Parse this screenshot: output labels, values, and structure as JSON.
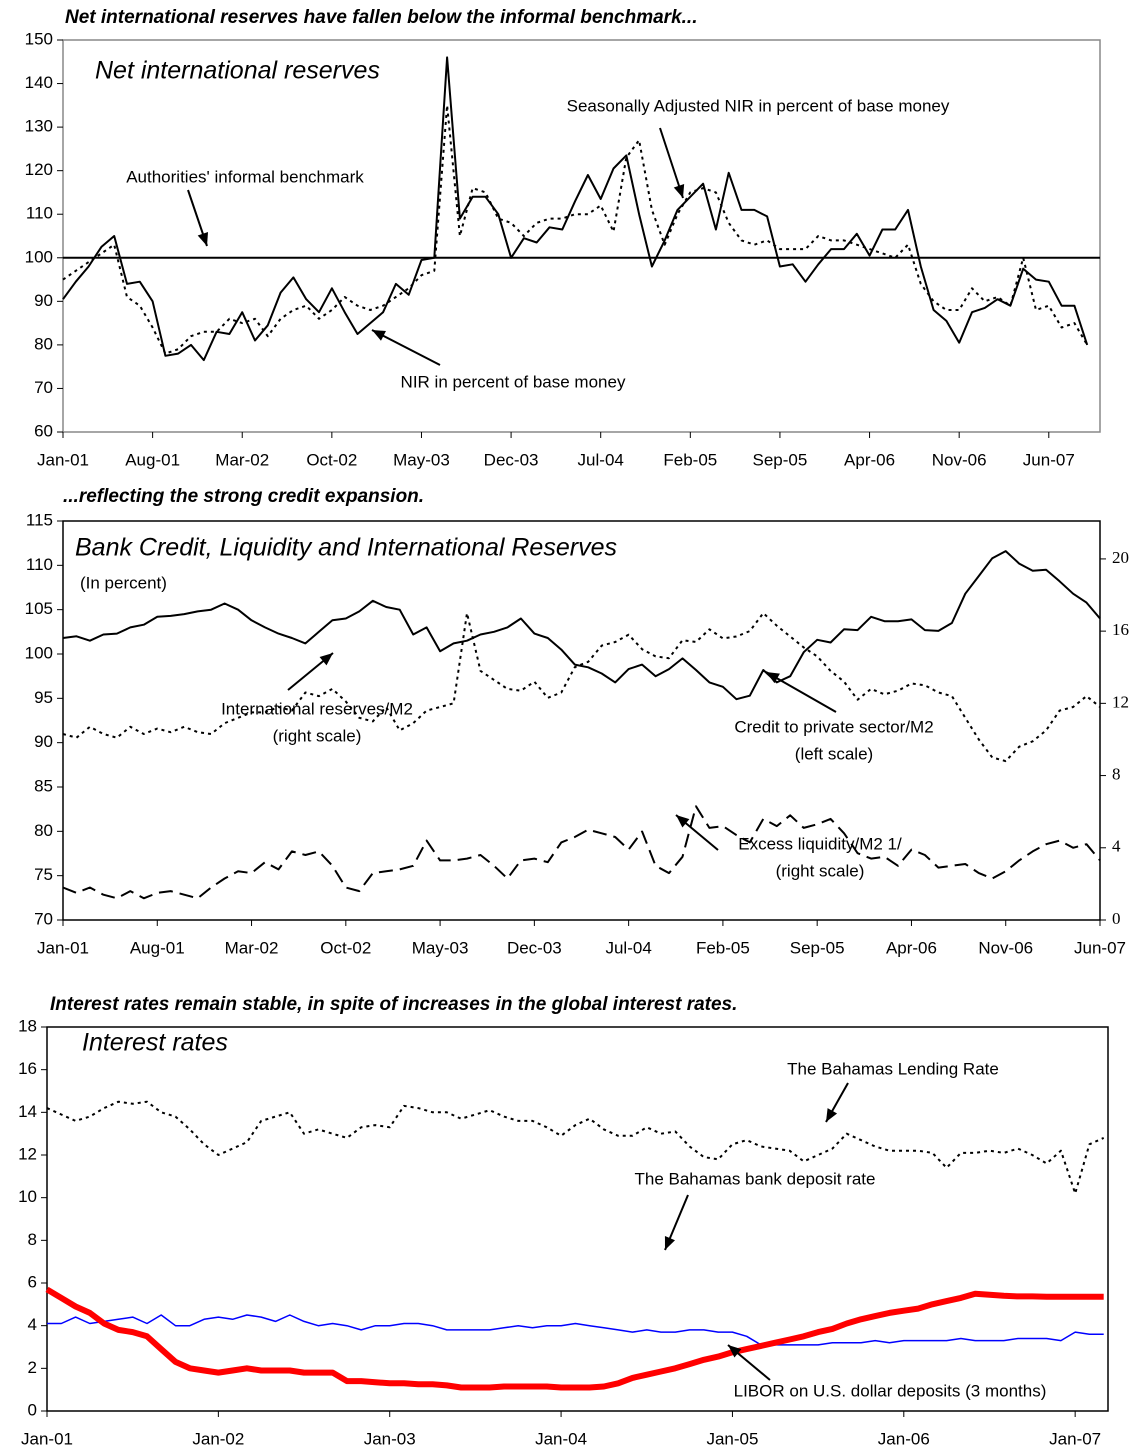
{
  "chart_data": [
    {
      "type": "line",
      "heading": "Net international reserves have fallen below the informal benchmark...",
      "title": "Net international reserves",
      "categories": [
        "Jan-01",
        null,
        null,
        null,
        null,
        null,
        null,
        "Aug-01",
        null,
        null,
        null,
        null,
        null,
        null,
        "Mar-02",
        null,
        null,
        null,
        null,
        null,
        null,
        "Oct-02",
        null,
        null,
        null,
        null,
        null,
        null,
        "May-03",
        null,
        null,
        null,
        null,
        null,
        null,
        "Dec-03",
        null,
        null,
        null,
        null,
        null,
        null,
        "Jul-04",
        null,
        null,
        null,
        null,
        null,
        null,
        "Feb-05",
        null,
        null,
        null,
        null,
        null,
        null,
        "Sep-05",
        null,
        null,
        null,
        null,
        null,
        null,
        "Apr-06",
        null,
        null,
        null,
        null,
        null,
        null,
        "Nov-06",
        null,
        null,
        null,
        null,
        null,
        null,
        "Jun-07",
        null,
        null,
        null
      ],
      "series": [
        {
          "name": "NIR in  percent of base money",
          "color": "#000000",
          "style": "solid",
          "line_width": 2,
          "values": [
            90.5,
            94.5,
            98,
            102.5,
            105,
            94,
            94.5,
            90,
            77.5,
            78,
            80,
            76.5,
            83,
            82.5,
            87.5,
            81,
            84.5,
            92,
            95.5,
            90.5,
            87.5,
            93,
            87.5,
            82.5,
            85,
            87.5,
            94,
            91.5,
            99.5,
            100,
            146,
            109,
            114,
            114,
            110,
            100,
            104.5,
            103.5,
            107,
            106.5,
            113,
            119,
            113.5,
            120.5,
            123.5,
            110,
            98,
            104,
            111,
            114,
            117,
            106.5,
            119.5,
            111,
            111,
            109.5,
            98,
            98.5,
            94.5,
            98.5,
            102,
            102,
            105.5,
            100.5,
            106.5,
            106.5,
            111,
            98,
            88,
            85.5,
            80.5,
            87.5,
            88.5,
            90.5,
            89,
            97.5,
            95,
            94.5,
            89,
            89,
            80
          ]
        },
        {
          "name": "Seasonally Adjusted NIR in  percent of base money",
          "color": "#000000",
          "style": "dotted",
          "line_width": 2,
          "values": [
            95,
            97,
            99,
            101,
            103,
            91,
            89,
            84,
            78,
            79,
            82,
            83,
            83,
            86,
            85,
            86,
            82,
            86,
            88,
            89,
            86,
            88,
            91,
            89,
            88,
            89,
            91,
            93,
            96,
            97,
            135,
            105,
            116,
            115,
            109,
            108,
            105,
            108,
            109,
            109,
            110,
            110,
            112,
            106,
            123,
            127,
            111,
            103,
            110,
            115,
            116,
            115,
            108,
            104,
            103,
            104,
            102,
            102,
            102,
            105,
            104,
            104,
            103,
            102,
            101,
            100,
            103,
            94,
            90,
            88,
            88,
            93,
            90,
            91,
            89,
            100,
            88,
            89,
            84,
            85,
            80
          ]
        }
      ],
      "reference_line": {
        "label": "Authorities' informal benchmark",
        "value": 100
      },
      "ylim": [
        60,
        150
      ],
      "yticks": [
        60,
        70,
        80,
        90,
        100,
        110,
        120,
        130,
        140,
        150
      ],
      "grid": false
    },
    {
      "type": "line",
      "heading": "...reflecting the strong credit expansion.",
      "title": "Bank Credit, Liquidity and International Reserves",
      "subtitle": "(In percent)",
      "categories": [
        "Jan-01",
        null,
        null,
        null,
        null,
        null,
        null,
        "Aug-01",
        null,
        null,
        null,
        null,
        null,
        null,
        "Mar-02",
        null,
        null,
        null,
        null,
        null,
        null,
        "Oct-02",
        null,
        null,
        null,
        null,
        null,
        null,
        "May-03",
        null,
        null,
        null,
        null,
        null,
        null,
        "Dec-03",
        null,
        null,
        null,
        null,
        null,
        null,
        "Jul-04",
        null,
        null,
        null,
        null,
        null,
        null,
        "Feb-05",
        null,
        null,
        null,
        null,
        null,
        null,
        "Sep-05",
        null,
        null,
        null,
        null,
        null,
        null,
        "Apr-06",
        null,
        null,
        null,
        null,
        null,
        null,
        "Nov-06",
        null,
        null,
        null,
        null,
        null,
        null,
        "Jun-07"
      ],
      "series": [
        {
          "name": "Credit to private sector/M2",
          "scale_note": "(left scale)",
          "color": "#000000",
          "style": "solid",
          "line_width": 2,
          "axis": "y",
          "values": [
            101.8,
            102,
            101.5,
            102.2,
            102.3,
            103,
            103.3,
            104.2,
            104.3,
            104.5,
            104.8,
            105,
            105.7,
            105,
            103.8,
            103,
            102.3,
            101.8,
            101.2,
            102.5,
            103.8,
            104,
            104.8,
            106,
            105.3,
            105,
            102.2,
            103,
            100.3,
            101.2,
            101.5,
            102.2,
            102.5,
            103,
            104,
            102.3,
            101.8,
            100.5,
            98.8,
            98.5,
            97.8,
            96.8,
            98.3,
            98.8,
            97.5,
            98.3,
            99.5,
            98.2,
            96.8,
            96.3,
            94.9,
            95.3,
            98.2,
            96.8,
            97.5,
            100.2,
            101.6,
            101.3,
            102.8,
            102.7,
            104.2,
            103.7,
            103.7,
            103.9,
            102.7,
            102.6,
            103.5,
            106.8,
            108.8,
            110.8,
            111.6,
            110.2,
            109.4,
            109.5,
            108.2,
            106.8,
            105.8,
            104
          ]
        },
        {
          "name": "International reserves/M2",
          "scale_note": "(right scale)",
          "color": "#000000",
          "style": "dotted",
          "line_width": 2,
          "axis": "y2",
          "values": [
            10.3,
            10.1,
            10.7,
            10.3,
            10.1,
            10.7,
            10.3,
            10.6,
            10.4,
            10.7,
            10.4,
            10.3,
            10.9,
            11.2,
            11.5,
            11.5,
            11.8,
            11.6,
            12.6,
            12.4,
            12.8,
            12.1,
            11.2,
            11,
            11.8,
            10.5,
            10.9,
            11.6,
            11.8,
            12,
            17,
            13.8,
            13.3,
            12.8,
            12.7,
            13.2,
            12.3,
            12.6,
            14,
            14.3,
            15.2,
            15.4,
            15.8,
            15,
            14.6,
            14.5,
            15.5,
            15.4,
            16.1,
            15.6,
            15.7,
            16,
            17,
            16.3,
            15.7,
            15.1,
            14.6,
            13.8,
            13.2,
            12.2,
            12.8,
            12.5,
            12.7,
            13.1,
            13,
            12.6,
            12.4,
            11.2,
            10,
            9,
            8.8,
            9.6,
            9.9,
            10.5,
            11.6,
            11.8,
            12.4,
            11.8
          ]
        },
        {
          "name": "Excess liquidity/M2 1/",
          "scale_note": "(right scale)",
          "color": "#000000",
          "style": "dashed",
          "line_width": 2,
          "axis": "y2",
          "values": [
            1.8,
            1.5,
            1.8,
            1.4,
            1.2,
            1.6,
            1.2,
            1.5,
            1.6,
            1.4,
            1.2,
            1.8,
            2.3,
            2.7,
            2.6,
            3.2,
            2.8,
            3.8,
            3.6,
            3.8,
            3,
            1.8,
            1.6,
            2.6,
            2.7,
            2.8,
            3,
            4.4,
            3.3,
            3.3,
            3.4,
            3.6,
            3,
            2.3,
            3.3,
            3.4,
            3.2,
            4.3,
            4.6,
            5,
            4.8,
            4.6,
            3.9,
            4.9,
            3,
            2.6,
            3.5,
            6.3,
            5.1,
            5.2,
            4.7,
            4.3,
            5.6,
            5.2,
            5.8,
            5.1,
            5.3,
            5.6,
            4.8,
            3.7,
            3.4,
            3.5,
            3,
            3.9,
            3.6,
            2.9,
            3,
            3.1,
            2.6,
            2.3,
            2.7,
            3.3,
            3.8,
            4.2,
            4.4,
            4,
            4.2,
            3.3
          ]
        }
      ],
      "ylim": [
        70,
        115
      ],
      "yticks": [
        70,
        75,
        80,
        85,
        90,
        95,
        100,
        105,
        110,
        115
      ],
      "y2lim": [
        0,
        22.1
      ],
      "y2ticks": [
        0,
        4,
        8,
        12,
        16,
        20
      ],
      "grid": false
    },
    {
      "type": "line",
      "heading": "Interest rates remain stable, in spite of increases in the global interest rates.",
      "title": "Interest rates",
      "categories": [
        "Jan-01",
        null,
        null,
        null,
        null,
        null,
        null,
        null,
        null,
        null,
        null,
        null,
        "Jan-02",
        null,
        null,
        null,
        null,
        null,
        null,
        null,
        null,
        null,
        null,
        null,
        "Jan-03",
        null,
        null,
        null,
        null,
        null,
        null,
        null,
        null,
        null,
        null,
        null,
        "Jan-04",
        null,
        null,
        null,
        null,
        null,
        null,
        null,
        null,
        null,
        null,
        null,
        "Jan-05",
        null,
        null,
        null,
        null,
        null,
        null,
        null,
        null,
        null,
        null,
        null,
        "Jan-06",
        null,
        null,
        null,
        null,
        null,
        null,
        null,
        null,
        null,
        null,
        null,
        "Jan-07",
        null,
        null
      ],
      "series": [
        {
          "name": "The Bahamas Lending Rate",
          "color": "#000000",
          "style": "dotted",
          "line_width": 2,
          "values": [
            14.2,
            13.9,
            13.6,
            13.8,
            14.2,
            14.5,
            14.4,
            14.5,
            14,
            13.8,
            13.2,
            12.5,
            12,
            12.3,
            12.6,
            13.6,
            13.8,
            14,
            13,
            13.2,
            13,
            12.8,
            13.3,
            13.4,
            13.3,
            14.3,
            14.2,
            14,
            14,
            13.7,
            13.9,
            14.1,
            13.8,
            13.6,
            13.6,
            13.3,
            12.9,
            13.4,
            13.7,
            13.2,
            12.9,
            12.9,
            13.3,
            13,
            13.1,
            12.4,
            11.9,
            11.8,
            12.5,
            12.7,
            12.4,
            12.3,
            12.2,
            11.7,
            12,
            12.3,
            13,
            12.7,
            12.4,
            12.2,
            12.2,
            12.2,
            12.1,
            11.4,
            12.1,
            12.1,
            12.2,
            12.1,
            12.3,
            12,
            11.6,
            12.2,
            10.2,
            12.5,
            12.8
          ]
        },
        {
          "name": "The Bahamas bank deposit rate",
          "color": "#0000ff",
          "style": "solid",
          "line_width": 1.5,
          "values": [
            4.1,
            4.1,
            4.4,
            4.1,
            4.2,
            4.3,
            4.4,
            4.1,
            4.5,
            4,
            4,
            4.3,
            4.4,
            4.3,
            4.5,
            4.4,
            4.2,
            4.5,
            4.2,
            4,
            4.1,
            4,
            3.8,
            4,
            4,
            4.1,
            4.1,
            4,
            3.8,
            3.8,
            3.8,
            3.8,
            3.9,
            4,
            3.9,
            4,
            4,
            4.1,
            4,
            3.9,
            3.8,
            3.7,
            3.8,
            3.7,
            3.7,
            3.8,
            3.8,
            3.7,
            3.7,
            3.5,
            3.1,
            3.1,
            3.1,
            3.1,
            3.1,
            3.2,
            3.2,
            3.2,
            3.3,
            3.2,
            3.3,
            3.3,
            3.3,
            3.3,
            3.4,
            3.3,
            3.3,
            3.3,
            3.4,
            3.4,
            3.4,
            3.3,
            3.7,
            3.6,
            3.6
          ]
        },
        {
          "name": "LIBOR on U.S. dollar deposits (3 months)",
          "color": "#ff0000",
          "style": "solid",
          "line_width": 6,
          "values": [
            5.7,
            5.3,
            4.9,
            4.6,
            4.1,
            3.8,
            3.7,
            3.5,
            2.9,
            2.3,
            2,
            1.9,
            1.8,
            1.9,
            2,
            1.9,
            1.9,
            1.9,
            1.8,
            1.8,
            1.8,
            1.4,
            1.4,
            1.35,
            1.3,
            1.3,
            1.25,
            1.25,
            1.2,
            1.1,
            1.1,
            1.1,
            1.15,
            1.15,
            1.15,
            1.15,
            1.1,
            1.1,
            1.1,
            1.15,
            1.3,
            1.55,
            1.7,
            1.85,
            2,
            2.2,
            2.4,
            2.55,
            2.75,
            2.9,
            3.05,
            3.2,
            3.35,
            3.5,
            3.7,
            3.85,
            4.1,
            4.3,
            4.45,
            4.6,
            4.7,
            4.8,
            5,
            5.15,
            5.3,
            5.5,
            5.45,
            5.4,
            5.37,
            5.37,
            5.36,
            5.36,
            5.36,
            5.36,
            5.36
          ]
        }
      ],
      "ylim": [
        0,
        18
      ],
      "yticks": [
        0,
        2,
        4,
        6,
        8,
        10,
        12,
        14,
        16,
        18
      ],
      "grid": false
    }
  ]
}
